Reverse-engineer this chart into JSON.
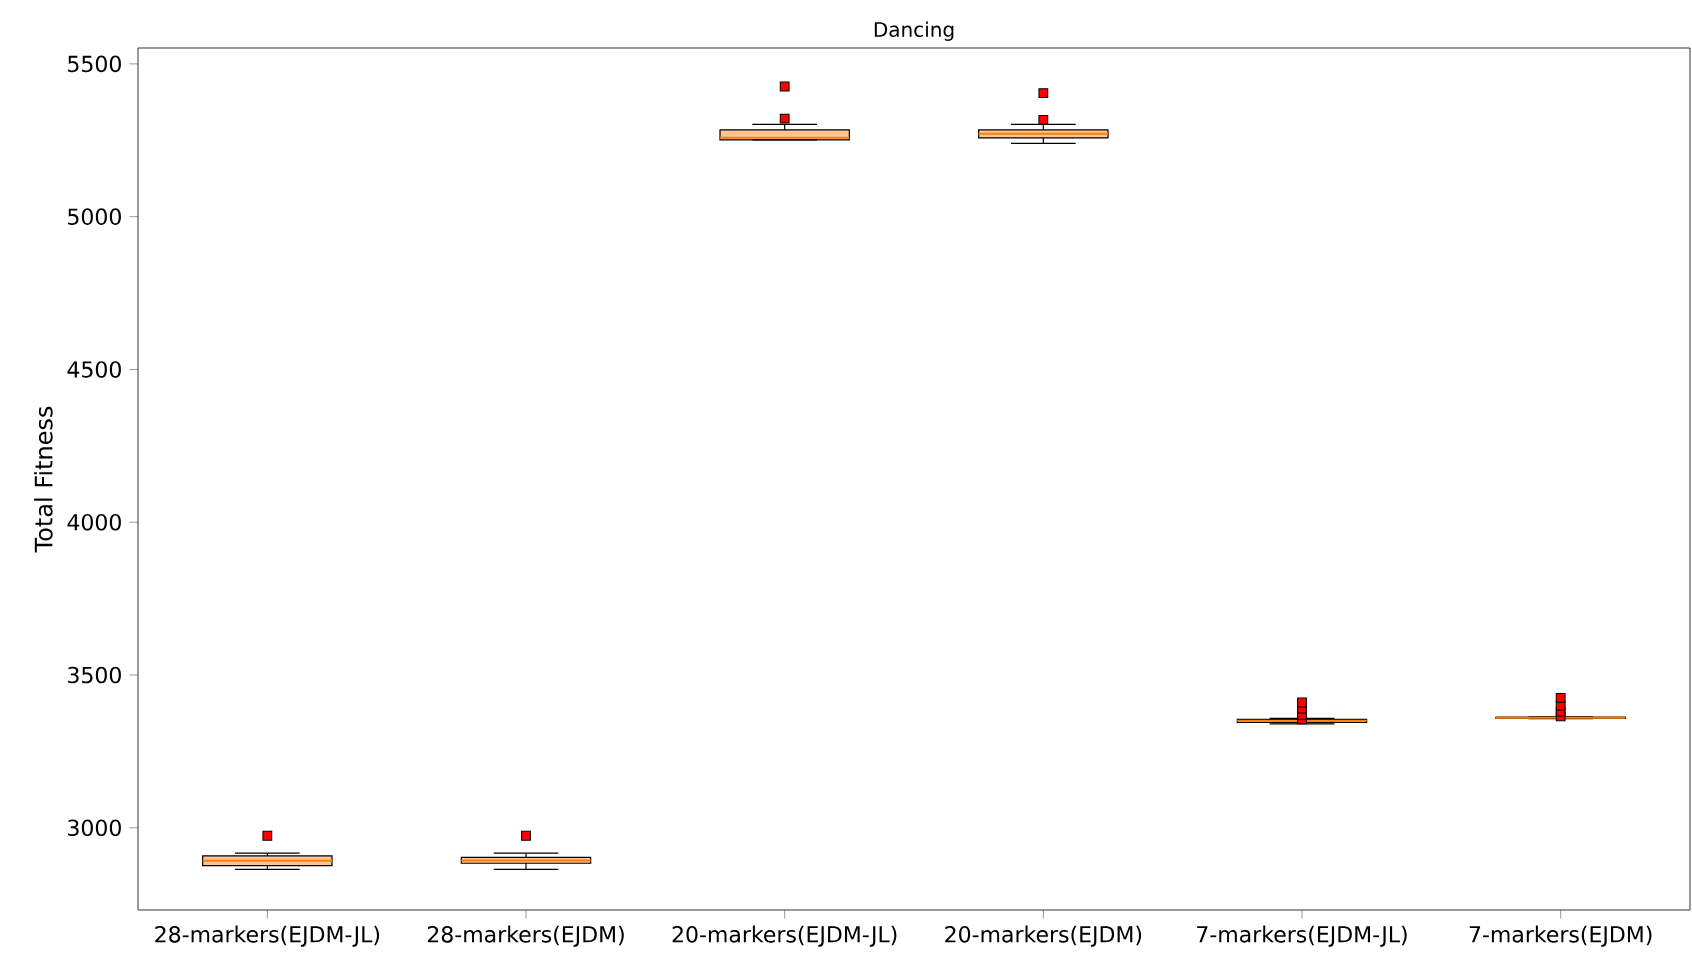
{
  "chart_data": {
    "type": "box",
    "title": "Dancing",
    "ylabel": "Total Fitness",
    "categories": [
      "28-markers(EJDM-JL)",
      "28-markers(EJDM)",
      "20-markers(EJDM-JL)",
      "20-markers(EJDM)",
      "7-markers(EJDM-JL)",
      "7-markers(EJDM)"
    ],
    "boxes": [
      {
        "low": 2864,
        "q1": 2876,
        "median": 2892,
        "q3": 2908,
        "high": 2917,
        "outliers": [
          2974
        ]
      },
      {
        "low": 2864,
        "q1": 2884,
        "median": 2893,
        "q3": 2903,
        "high": 2917,
        "outliers": [
          2974
        ]
      },
      {
        "low": 5251,
        "q1": 5251,
        "median": 5258,
        "q3": 5284,
        "high": 5302,
        "outliers": [
          5321,
          5426
        ]
      },
      {
        "low": 5240,
        "q1": 5258,
        "median": 5271,
        "q3": 5284,
        "high": 5302,
        "outliers": [
          5317,
          5404
        ]
      },
      {
        "low": 3340,
        "q1": 3345,
        "median": 3350,
        "q3": 3355,
        "high": 3358,
        "outliers": [
          3355,
          3370,
          3390,
          3410
        ]
      },
      {
        "low": 3357,
        "q1": 3358,
        "median": 3360,
        "q3": 3362,
        "high": 3363,
        "outliers": [
          3365,
          3380,
          3400,
          3425
        ]
      }
    ],
    "color": "#ffc48f",
    "ylim": [
      2731,
      5552
    ],
    "yticks": [
      3000,
      3500,
      4000,
      4500,
      5000,
      5500
    ],
    "grid": false
  }
}
